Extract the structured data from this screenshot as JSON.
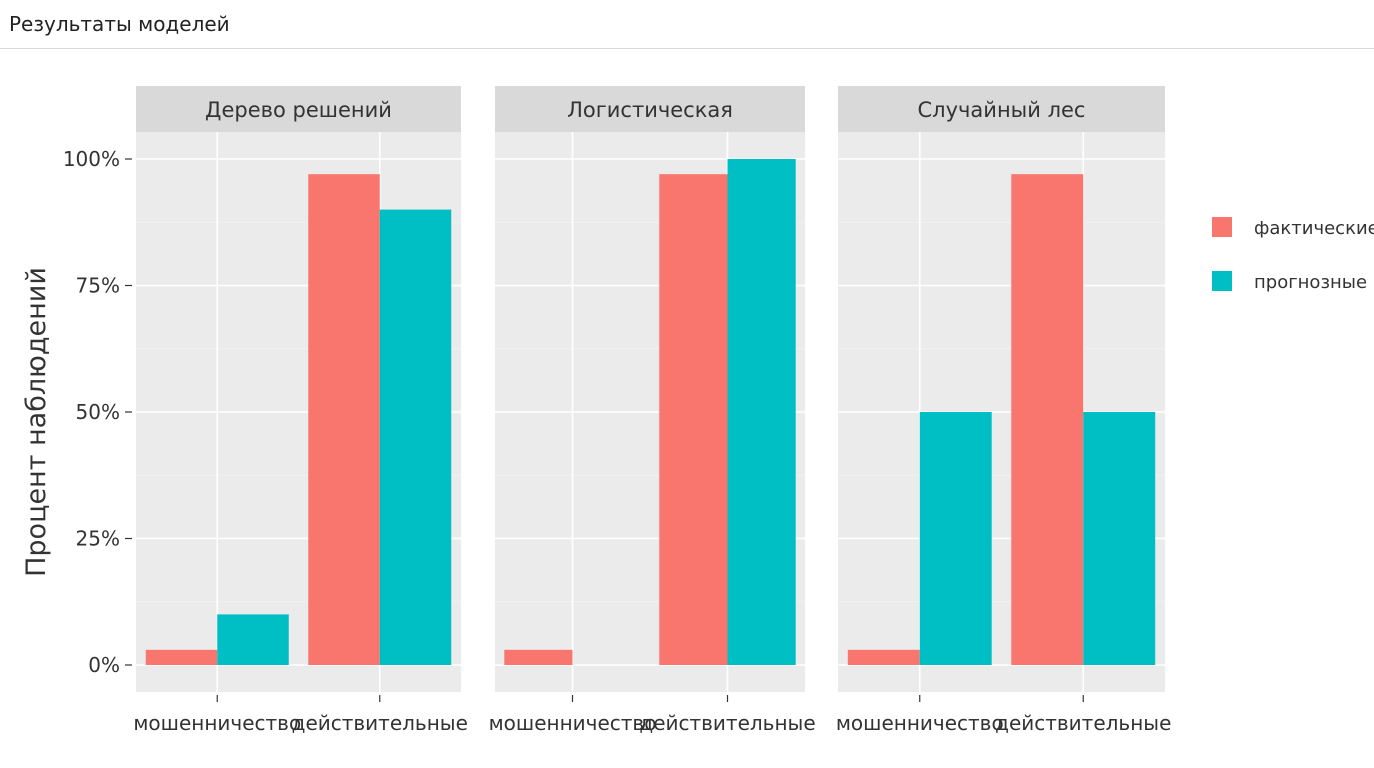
{
  "header": {
    "title": "Результаты моделей"
  },
  "chart_data": {
    "type": "bar",
    "ylabel": "Процент наблюдений",
    "xlabel": "",
    "ylim": [
      0,
      1.12
    ],
    "yticks": [
      0,
      0.25,
      0.5,
      0.75,
      1.0
    ],
    "ytick_labels": [
      "0%",
      "25%",
      "50%",
      "75%",
      "100%"
    ],
    "categories": [
      "мошенничество",
      "действительные"
    ],
    "legend": {
      "position": "right",
      "entries": [
        {
          "name": "фактические",
          "color": "#F8766D"
        },
        {
          "name": "прогнозные",
          "color": "#00BFC4"
        }
      ]
    },
    "panels": [
      {
        "title": "Дерево решений",
        "series": [
          {
            "name": "фактические",
            "values": [
              0.03,
              0.97
            ]
          },
          {
            "name": "прогнозные",
            "values": [
              0.1,
              0.9
            ]
          }
        ]
      },
      {
        "title": "Логистическая",
        "series": [
          {
            "name": "фактические",
            "values": [
              0.03,
              0.97
            ]
          },
          {
            "name": "прогнозные",
            "values": [
              0.0,
              1.0
            ]
          }
        ]
      },
      {
        "title": "Случайный лес",
        "series": [
          {
            "name": "фактические",
            "values": [
              0.03,
              0.97
            ]
          },
          {
            "name": "прогнозные",
            "values": [
              0.5,
              0.5
            ]
          }
        ]
      }
    ],
    "grid": true
  }
}
